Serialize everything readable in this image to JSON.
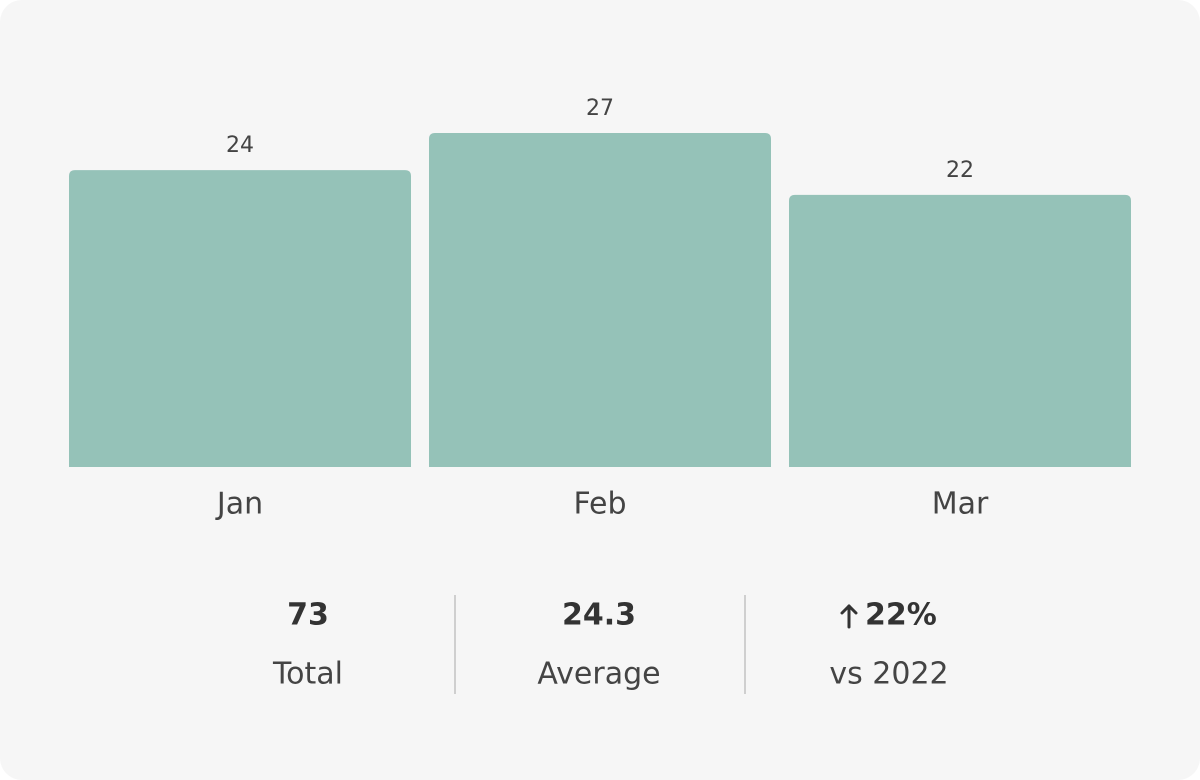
{
  "chart_data": {
    "type": "bar",
    "categories": [
      "Jan",
      "Feb",
      "Mar"
    ],
    "values": [
      24,
      27,
      22
    ],
    "color": "#95c2b8"
  },
  "stats": [
    {
      "value": "73",
      "label": "Total"
    },
    {
      "value": "24.3",
      "label": "Average"
    },
    {
      "value": "22%",
      "label": "vs 2022"
    }
  ]
}
